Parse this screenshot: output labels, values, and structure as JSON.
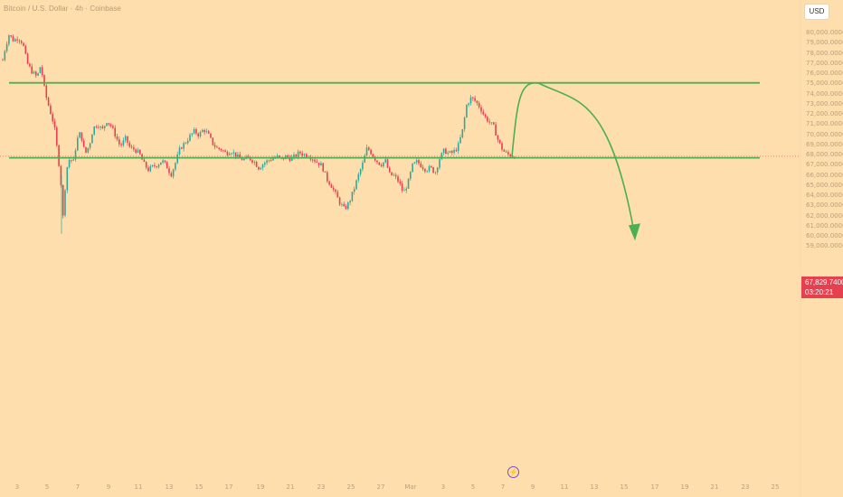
{
  "header": {
    "title": "Bitcoin / U.S. Dollar · 4h · Coinbase",
    "currency_button": "USD"
  },
  "price_tag": {
    "price": "67,829.7400",
    "countdown": "03:20:21",
    "color": "#e5404f"
  },
  "colors": {
    "background": "#ffdeae",
    "up_candle": "#2fa89a",
    "down_candle": "#e5404f",
    "level_line": "#4caf50",
    "projection": "#4caf50"
  },
  "chart_data": {
    "type": "candlestick",
    "symbol": "Bitcoin / U.S. Dollar",
    "timeframe": "4h",
    "exchange": "Coinbase",
    "y_axis": {
      "ticks": [
        "80,000.0000",
        "79,000.0000",
        "78,000.0000",
        "77,000.0000",
        "76,000.0000",
        "75,000.0000",
        "74,000.0000",
        "73,000.0000",
        "72,000.0000",
        "71,000.0000",
        "70,000.0000",
        "69,000.0000",
        "68,000.0000",
        "67,000.0000",
        "66,000.0000",
        "65,000.0000",
        "64,000.0000",
        "63,000.0000",
        "62,000.0000",
        "61,000.0000",
        "60,000.0000",
        "59,000.0000"
      ],
      "ylim": [
        58600,
        80500
      ]
    },
    "x_axis": {
      "ticks": [
        "3",
        "5",
        "7",
        "9",
        "11",
        "13",
        "15",
        "17",
        "19",
        "21",
        "23",
        "25",
        "27",
        "Mar",
        "3",
        "5",
        "7",
        "9",
        "11",
        "13",
        "15",
        "17",
        "19",
        "21",
        "23",
        "25"
      ]
    },
    "series": [
      {
        "type": "candles",
        "path": [
          [
            0,
            77300
          ],
          [
            3,
            78600
          ],
          [
            7,
            79800
          ],
          [
            12,
            79200
          ],
          [
            17,
            79500
          ],
          [
            22,
            79000
          ],
          [
            27,
            77000
          ],
          [
            32,
            76200
          ],
          [
            38,
            75600
          ],
          [
            42,
            76800
          ],
          [
            47,
            74000
          ],
          [
            52,
            72400
          ],
          [
            57,
            70800
          ],
          [
            62,
            67200
          ],
          [
            65,
            64600
          ],
          [
            67,
            61400
          ],
          [
            70,
            66400
          ],
          [
            74,
            67600
          ],
          [
            78,
            67200
          ],
          [
            82,
            69400
          ],
          [
            86,
            70200
          ],
          [
            91,
            68000
          ],
          [
            96,
            69000
          ],
          [
            100,
            70600
          ],
          [
            105,
            71000
          ],
          [
            110,
            70400
          ],
          [
            115,
            71300
          ],
          [
            120,
            70800
          ],
          [
            125,
            69800
          ],
          [
            130,
            68800
          ],
          [
            136,
            69600
          ],
          [
            141,
            68600
          ],
          [
            146,
            68500
          ],
          [
            151,
            68100
          ],
          [
            156,
            67100
          ],
          [
            161,
            66500
          ],
          [
            166,
            66800
          ],
          [
            171,
            67000
          ],
          [
            176,
            67400
          ],
          [
            181,
            66900
          ],
          [
            186,
            66000
          ],
          [
            191,
            67200
          ],
          [
            196,
            68600
          ],
          [
            202,
            69200
          ],
          [
            207,
            69800
          ],
          [
            212,
            70300
          ],
          [
            217,
            69900
          ],
          [
            222,
            70500
          ],
          [
            227,
            70000
          ],
          [
            232,
            69100
          ],
          [
            237,
            68600
          ],
          [
            242,
            68500
          ],
          [
            247,
            68100
          ],
          [
            252,
            68400
          ],
          [
            257,
            68000
          ],
          [
            262,
            67600
          ],
          [
            267,
            67500
          ],
          [
            272,
            67700
          ],
          [
            278,
            67300
          ],
          [
            283,
            66700
          ],
          [
            288,
            67100
          ],
          [
            293,
            67400
          ],
          [
            298,
            67600
          ],
          [
            303,
            67800
          ],
          [
            308,
            67500
          ],
          [
            313,
            67800
          ],
          [
            318,
            67600
          ],
          [
            323,
            67800
          ],
          [
            328,
            68200
          ],
          [
            333,
            68000
          ],
          [
            338,
            67900
          ],
          [
            343,
            67600
          ],
          [
            348,
            67200
          ],
          [
            353,
            66900
          ],
          [
            358,
            65600
          ],
          [
            363,
            65000
          ],
          [
            368,
            64100
          ],
          [
            373,
            63200
          ],
          [
            378,
            62600
          ],
          [
            383,
            63300
          ],
          [
            388,
            64500
          ],
          [
            393,
            65900
          ],
          [
            398,
            67100
          ],
          [
            403,
            68700
          ],
          [
            408,
            68100
          ],
          [
            413,
            67400
          ],
          [
            418,
            67000
          ],
          [
            423,
            67400
          ],
          [
            428,
            66000
          ],
          [
            433,
            65900
          ],
          [
            438,
            65300
          ],
          [
            443,
            64200
          ],
          [
            448,
            65200
          ],
          [
            453,
            66900
          ],
          [
            458,
            67300
          ],
          [
            463,
            66900
          ],
          [
            468,
            66500
          ],
          [
            473,
            66700
          ],
          [
            478,
            66200
          ],
          [
            483,
            67600
          ],
          [
            488,
            68400
          ],
          [
            493,
            68100
          ],
          [
            498,
            68200
          ],
          [
            503,
            68700
          ],
          [
            508,
            70200
          ],
          [
            513,
            72900
          ],
          [
            518,
            73600
          ],
          [
            523,
            73200
          ],
          [
            528,
            72600
          ],
          [
            533,
            71700
          ],
          [
            538,
            71200
          ],
          [
            543,
            70700
          ],
          [
            548,
            69300
          ],
          [
            553,
            68400
          ],
          [
            558,
            68000
          ],
          [
            563,
            67900
          ],
          [
            568,
            67830
          ]
        ]
      },
      {
        "type": "horizontal_level",
        "value": 75050
      },
      {
        "type": "horizontal_level",
        "value": 67680
      },
      {
        "type": "projection_arrow",
        "points": [
          {
            "date": "8",
            "value": 68000
          },
          {
            "date": "10",
            "value": 75000
          },
          {
            "date": "15",
            "value": 59800
          }
        ]
      }
    ]
  }
}
